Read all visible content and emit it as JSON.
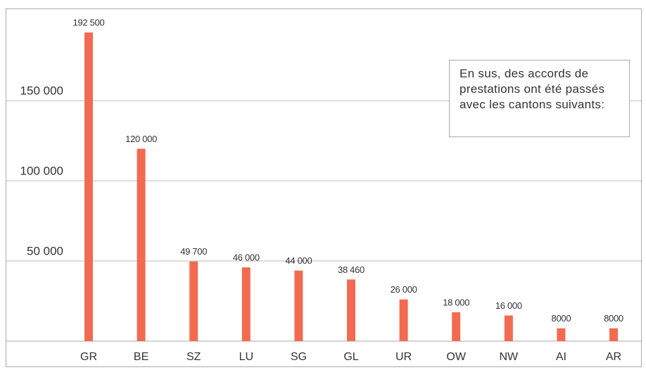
{
  "chart_data": {
    "type": "bar",
    "categories": [
      "GR",
      "BE",
      "SZ",
      "LU",
      "SG",
      "GL",
      "UR",
      "OW",
      "NW",
      "AI",
      "AR"
    ],
    "values": [
      192500,
      120000,
      49700,
      46000,
      44000,
      38460,
      26000,
      18000,
      16000,
      8000,
      8000
    ],
    "value_labels": [
      "192 500",
      "120 000",
      "49 700",
      "46 000",
      "44 000",
      "38 460",
      "26 000",
      "18 000",
      "16 000",
      "8000",
      "8000"
    ],
    "color": "#f26b50",
    "ylim": [
      0,
      207500
    ],
    "yticks": [
      {
        "value": 50000,
        "label": "50 000"
      },
      {
        "value": 100000,
        "label": "100 000"
      },
      {
        "value": 150000,
        "label": "150 000"
      }
    ],
    "grid": true,
    "annotation": "En sus, des accords de prestations ont été passés avec les cantons suivants:"
  }
}
